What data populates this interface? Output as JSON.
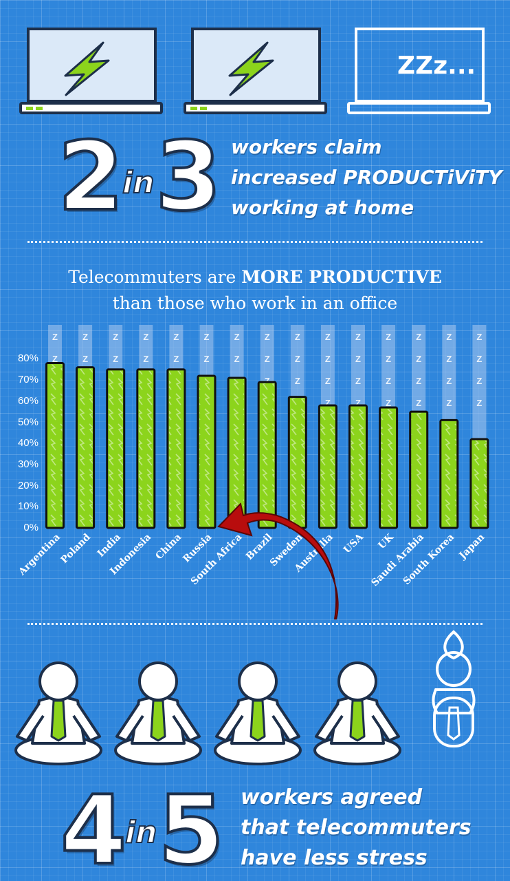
{
  "laptops": {
    "zzz_label": "ZZz...",
    "colors": {
      "screen": "#dbe9f8",
      "bolt": "#8cd41c",
      "outline": "#1d2f4a"
    }
  },
  "stat_top": {
    "number_left": "2",
    "in_word": "in",
    "number_right": "3",
    "line1": "workers claim",
    "line2": "increased PRODUCTiViTY",
    "line3": "working at home"
  },
  "chart_title": {
    "line1_pre": "Telecommuters are ",
    "line1_bold": "MORE PRODUCTIVE",
    "line2": "than those who work in an office"
  },
  "chart_data": {
    "type": "bar",
    "categories": [
      "Argentina",
      "Poland",
      "India",
      "Indonesia",
      "China",
      "Russia",
      "South Africa",
      "Brazil",
      "Sweden",
      "Australia",
      "USA",
      "UK",
      "Saudi Arabia",
      "South Korea",
      "Japan"
    ],
    "values": [
      78,
      76,
      75,
      75,
      75,
      72,
      71,
      69,
      62,
      58,
      58,
      57,
      55,
      51,
      42
    ],
    "ylim": [
      0,
      100
    ],
    "yticks": [
      "0%",
      "10%",
      "20%",
      "30%",
      "40%",
      "50%",
      "60%",
      "70%",
      "80%"
    ],
    "background_marker": "Z",
    "colors": {
      "bar": "#8cd41c",
      "bar_outline": "#111111",
      "background_column": "#a9c9ee",
      "arrow": "#b80d0d"
    }
  },
  "stat_bottom": {
    "number_left": "4",
    "in_word": "in",
    "number_right": "5",
    "line1": "workers agreed",
    "line2": "that telecommuters",
    "line3": "have less stress"
  },
  "figures": {
    "count": 5,
    "colors": {
      "tie": "#8cd41c",
      "outline": "#1d2f4a"
    }
  }
}
